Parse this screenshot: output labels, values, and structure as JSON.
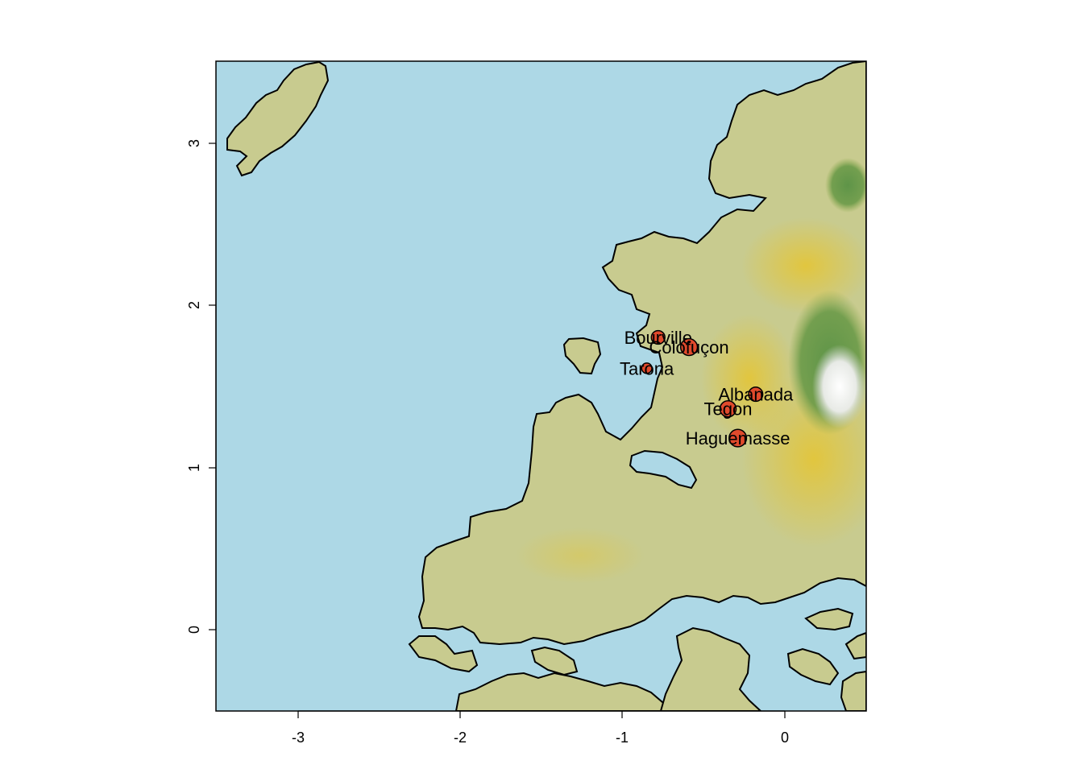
{
  "map": {
    "x_ticks": [
      "-3",
      "-2",
      "-1",
      "0"
    ],
    "y_ticks": [
      "0",
      "1",
      "2",
      "3"
    ],
    "colors": {
      "sea": "#add8e6",
      "lowland": "#c8cb8f",
      "upland": "#e3c637",
      "highland": "#e8c21a",
      "forest": "#5e9448",
      "snow": "#f4f4f4",
      "city_fill": "#e04a2c",
      "outline": "#000000"
    }
  },
  "chart_data": {
    "type": "scatter",
    "xlim": [
      -3.5,
      0.5
    ],
    "ylim": [
      -0.5,
      3.5
    ],
    "points": [
      {
        "name": "Bourville",
        "x": -0.78,
        "y": 1.8,
        "size": 2.1
      },
      {
        "name": "Colofuçon",
        "x": -0.59,
        "y": 1.74,
        "size": 2.6
      },
      {
        "name": "Tarona",
        "x": -0.85,
        "y": 1.61,
        "size": 1.6
      },
      {
        "name": "Albanada",
        "x": -0.18,
        "y": 1.45,
        "size": 2.2
      },
      {
        "name": "Tegon",
        "x": -0.35,
        "y": 1.36,
        "size": 2.5
      },
      {
        "name": "Haguemasse",
        "x": -0.29,
        "y": 1.18,
        "size": 2.7
      }
    ]
  }
}
